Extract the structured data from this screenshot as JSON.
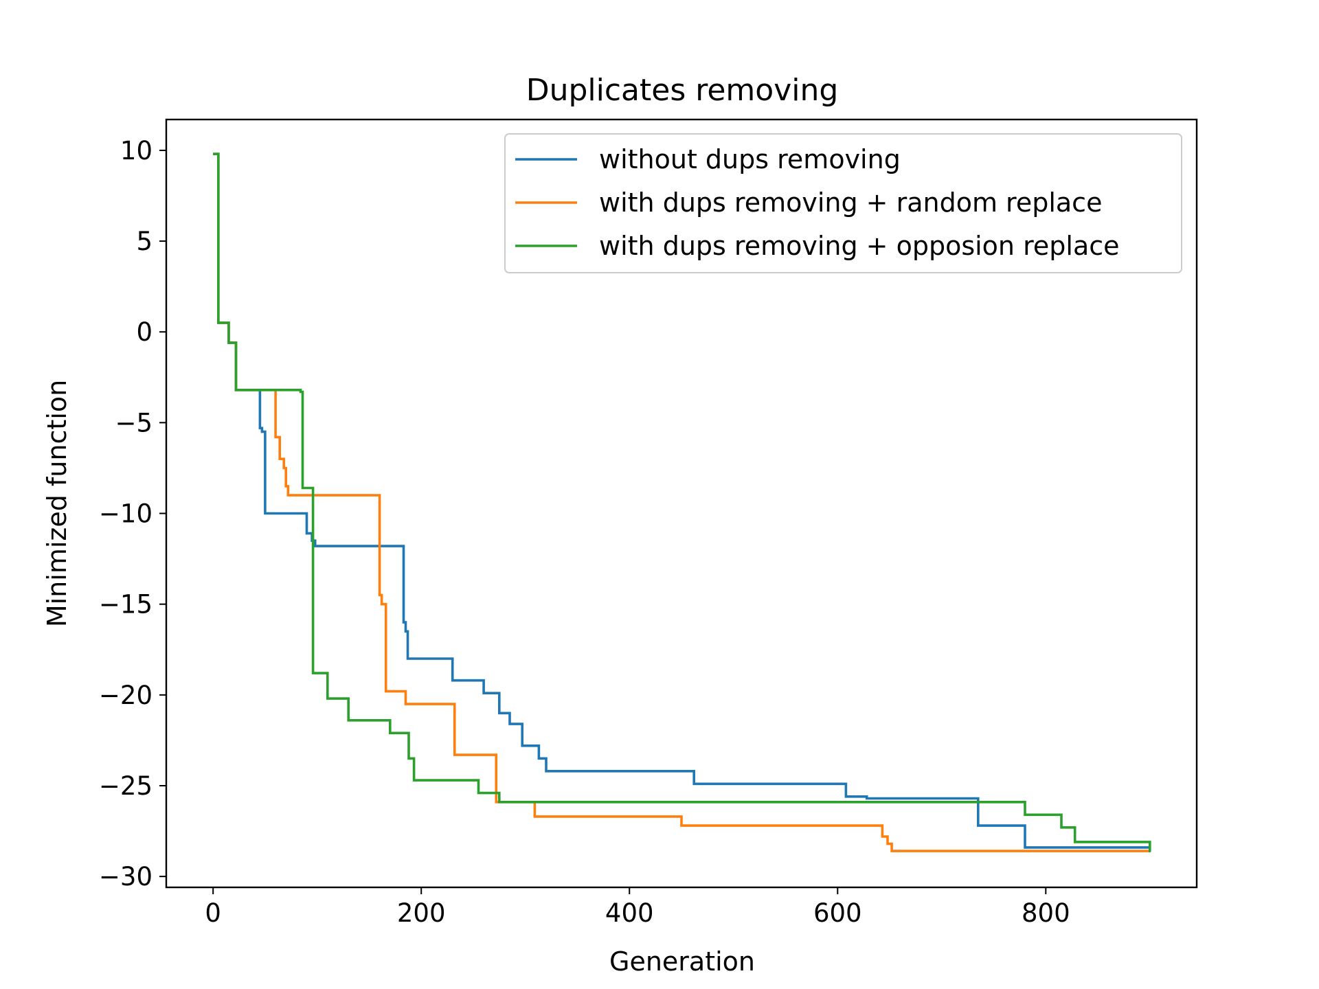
{
  "chart_data": {
    "type": "line",
    "title": "Duplicates removing",
    "xlabel": "Generation",
    "ylabel": "Minimized function",
    "xlim": [
      -45,
      945
    ],
    "ylim": [
      -30.6,
      11.7
    ],
    "xticks": [
      0,
      200,
      400,
      600,
      800
    ],
    "yticks": [
      10,
      5,
      0,
      -5,
      -10,
      -15,
      -20,
      -25,
      -30
    ],
    "xtick_labels": [
      "0",
      "200",
      "400",
      "600",
      "800"
    ],
    "ytick_labels": [
      "10",
      "5",
      "0",
      "−5",
      "−10",
      "−15",
      "−20",
      "−25",
      "−30"
    ],
    "grid": false,
    "legend_position": "top-right",
    "series": [
      {
        "name": "without dups removing",
        "color": "#1f77b4",
        "step": "post",
        "x": [
          0,
          5,
          15,
          20,
          22,
          45,
          47,
          50,
          88,
          90,
          95,
          98,
          100,
          183,
          185,
          187,
          230,
          260,
          275,
          285,
          297,
          313,
          320,
          340,
          462,
          608,
          628,
          735,
          780,
          900
        ],
        "y": [
          9.8,
          0.5,
          -0.6,
          -0.6,
          -3.2,
          -5.3,
          -5.5,
          -10.0,
          -10.0,
          -11.1,
          -11.5,
          -11.8,
          -11.8,
          -16.0,
          -16.5,
          -18.0,
          -19.2,
          -19.9,
          -21.0,
          -21.6,
          -22.8,
          -23.5,
          -24.2,
          -24.2,
          -24.9,
          -25.6,
          -25.7,
          -27.2,
          -28.4,
          -28.4
        ]
      },
      {
        "name": "with dups removing + random replace",
        "color": "#ff7f0e",
        "step": "post",
        "x": [
          0,
          5,
          15,
          20,
          22,
          60,
          64,
          68,
          70,
          72,
          160,
          162,
          166,
          170,
          185,
          232,
          272,
          274,
          309,
          450,
          643,
          648,
          652,
          900
        ],
        "y": [
          9.8,
          0.5,
          -0.6,
          -0.6,
          -3.2,
          -5.8,
          -7.0,
          -7.5,
          -8.5,
          -9.0,
          -14.5,
          -15.0,
          -19.8,
          -19.8,
          -20.5,
          -23.3,
          -25.9,
          -25.9,
          -26.7,
          -27.2,
          -27.8,
          -28.2,
          -28.6,
          -28.6
        ]
      },
      {
        "name": "with dups removing + opposion replace",
        "color": "#2ca02c",
        "step": "post",
        "x": [
          0,
          5,
          15,
          20,
          22,
          84,
          86,
          94,
          96,
          110,
          125,
          130,
          170,
          175,
          188,
          190,
          193,
          255,
          275,
          280,
          780,
          783,
          815,
          820,
          828,
          833,
          900,
          901
        ],
        "y": [
          9.8,
          0.5,
          -0.6,
          -0.6,
          -3.2,
          -3.3,
          -8.6,
          -8.6,
          -18.8,
          -20.2,
          -20.2,
          -21.4,
          -22.1,
          -22.1,
          -23.5,
          -23.5,
          -24.7,
          -25.4,
          -25.9,
          -25.9,
          -26.6,
          -26.6,
          -27.3,
          -27.3,
          -28.1,
          -28.1,
          -28.6,
          -28.6
        ]
      }
    ]
  }
}
